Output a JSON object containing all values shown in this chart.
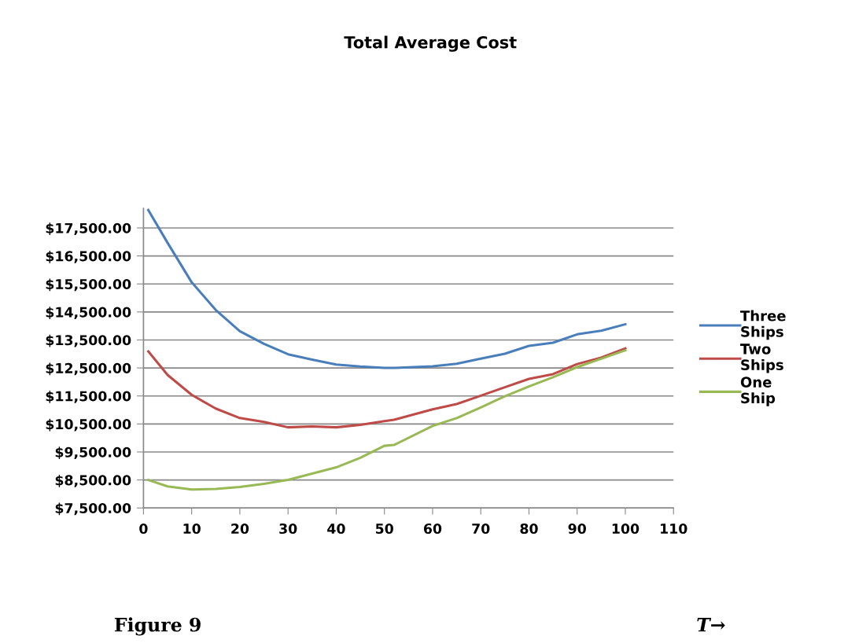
{
  "chart_data": {
    "type": "line",
    "title": "Total Average Cost",
    "xlim": [
      0,
      110
    ],
    "xticks": [
      0,
      10,
      20,
      30,
      40,
      50,
      60,
      70,
      80,
      90,
      100,
      110
    ],
    "ylim": [
      7500,
      18200
    ],
    "yticks": [
      {
        "value": 7500,
        "label": "$7,500.00"
      },
      {
        "value": 8500,
        "label": "$8,500.00"
      },
      {
        "value": 9500,
        "label": "$9,500.00"
      },
      {
        "value": 10500,
        "label": "$10,500.00"
      },
      {
        "value": 11500,
        "label": "$11,500.00"
      },
      {
        "value": 12500,
        "label": "$12,500.00"
      },
      {
        "value": 13500,
        "label": "$13,500.00"
      },
      {
        "value": 14500,
        "label": "$14,500.00"
      },
      {
        "value": 15500,
        "label": "$15,500.00"
      },
      {
        "value": 16500,
        "label": "$16,500.00"
      },
      {
        "value": 17500,
        "label": "$17,500.00"
      }
    ],
    "x": [
      1,
      5,
      10,
      15,
      20,
      25,
      30,
      35,
      40,
      45,
      50,
      52,
      60,
      65,
      70,
      75,
      80,
      85,
      90,
      95,
      100
    ],
    "series": [
      {
        "name": "Three Ships",
        "color": "#4a7ebb",
        "values": [
          18140,
          16970,
          15560,
          14570,
          13810,
          13360,
          12990,
          12800,
          12620,
          12550,
          12500,
          12500,
          12560,
          12650,
          12830,
          13010,
          13290,
          13400,
          13700,
          13830,
          14060
        ]
      },
      {
        "name": "Two Ships",
        "color": "#be4b48",
        "values": [
          13090,
          12250,
          11540,
          11050,
          10710,
          10570,
          10380,
          10410,
          10380,
          10470,
          10600,
          10650,
          11020,
          11210,
          11510,
          11810,
          12110,
          12280,
          12640,
          12870,
          13200
        ]
      },
      {
        "name": "One Ship",
        "color": "#98b954",
        "values": [
          8500,
          8270,
          8160,
          8180,
          8250,
          8360,
          8500,
          8730,
          8950,
          9290,
          9720,
          9750,
          10430,
          10710,
          11090,
          11490,
          11840,
          12170,
          12530,
          12830,
          13130
        ]
      }
    ],
    "grid": "y",
    "legend": "right",
    "marker": "none",
    "line_style": "solid",
    "annotations": [
      "Figure 9",
      "T→"
    ]
  }
}
